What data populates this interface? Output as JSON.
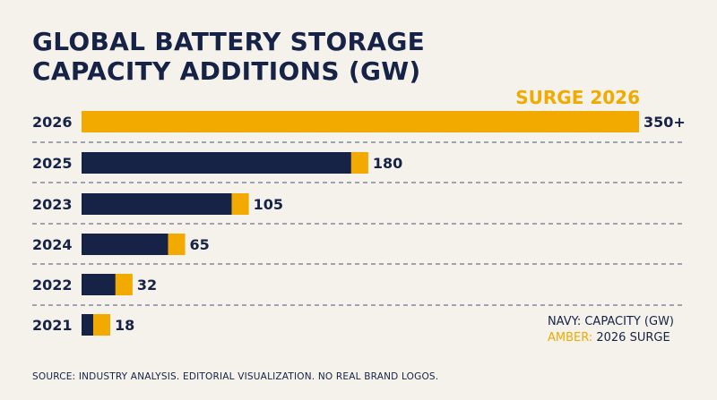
{
  "chart_data": {
    "type": "bar",
    "orientation": "horizontal",
    "title_line1": "GLOBAL BATTERY STORAGE",
    "title_line2": "CAPACITY ADDITIONS (GW)",
    "annotation": "SURGE 2026",
    "categories": [
      "2026",
      "2025",
      "2023",
      "2024",
      "2022",
      "2021"
    ],
    "values": [
      350,
      180,
      105,
      65,
      32,
      18
    ],
    "value_labels": [
      "350+",
      "180",
      "105",
      "65",
      "32",
      "18"
    ],
    "xlim": [
      0,
      360
    ],
    "grid": "dashed-horizontal",
    "legend": {
      "navy": "NAVY: CAPACITY (GW)",
      "amber_key": "AMBER:",
      "amber_rest": " 2026 SURGE",
      "placement": "bottom-right"
    },
    "colors": {
      "navy": "#162246",
      "amber": "#f2a900",
      "grid": "#4a5478"
    }
  },
  "footer": {
    "source": "SOURCE: INDUSTRY ANALYSIS. EDITORIAL VISUALIZATION. NO REAL BRAND LOGOS."
  }
}
